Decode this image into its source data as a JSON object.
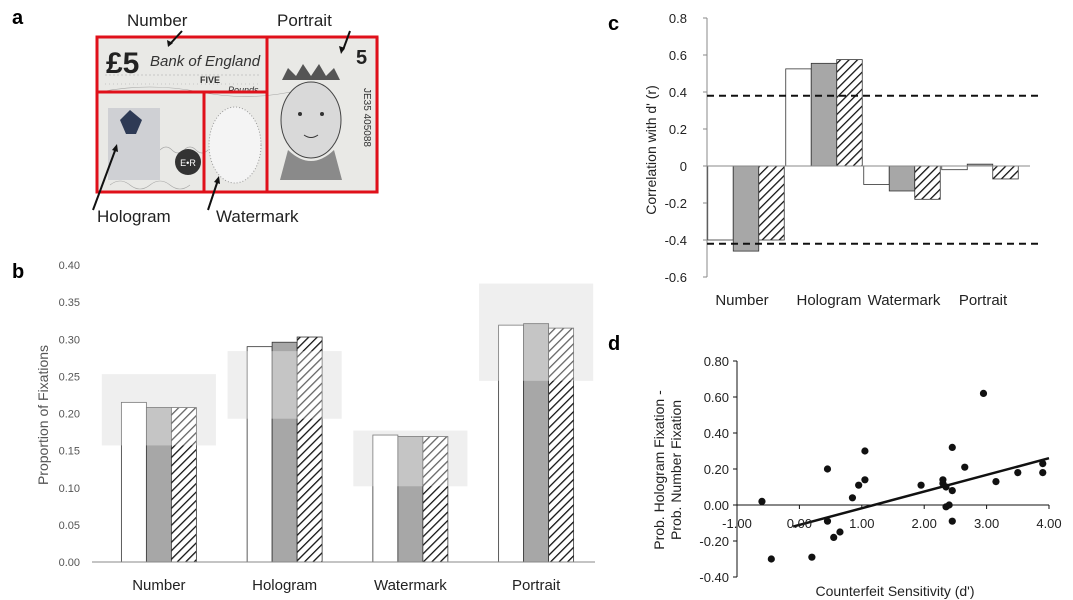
{
  "panel_letters": {
    "a": "a",
    "b": "b",
    "c": "c",
    "d": "d"
  },
  "banknote": {
    "labels": {
      "number": "Number",
      "portrait": "Portrait",
      "hologram": "Hologram",
      "watermark": "Watermark"
    },
    "note_text": {
      "denomination": "£5",
      "bank": "Bank of England",
      "five": "FIVE",
      "pounds": "Pounds",
      "serial": "JE35 405088",
      "corner_five": "5",
      "cipher": "E•R"
    },
    "colors": {
      "aoi_box": "#e0101a"
    }
  },
  "chart_data": [
    {
      "panel": "b",
      "type": "bar",
      "title": "",
      "xlabel": "",
      "ylabel": "Proportion of Fixations",
      "ylim": [
        0,
        0.4
      ],
      "yticks": [
        "0.00",
        "0.05",
        "0.10",
        "0.15",
        "0.20",
        "0.25",
        "0.30",
        "0.35",
        "0.40"
      ],
      "categories": [
        "Number",
        "Hologram",
        "Watermark",
        "Portrait"
      ],
      "series": [
        {
          "style": "white",
          "values": [
            0.215,
            0.29,
            0.171,
            0.319
          ]
        },
        {
          "style": "grey",
          "values": [
            0.208,
            0.296,
            0.169,
            0.321
          ]
        },
        {
          "style": "hatched",
          "values": [
            0.208,
            0.303,
            0.169,
            0.315
          ]
        }
      ],
      "chance_bands": [
        {
          "category": "Number",
          "low": 0.157,
          "high": 0.253
        },
        {
          "category": "Hologram",
          "low": 0.193,
          "high": 0.284
        },
        {
          "category": "Watermark",
          "low": 0.102,
          "high": 0.177
        },
        {
          "category": "Portrait",
          "low": 0.244,
          "high": 0.375
        }
      ],
      "grid": false
    },
    {
      "panel": "c",
      "type": "bar",
      "title": "",
      "xlabel": "",
      "ylabel": "Correlation  with d' (r)",
      "ylim": [
        -0.6,
        0.8
      ],
      "yticks": [
        "0.8",
        "0.6",
        "0.4",
        "0.2",
        "0",
        "-0.2",
        "-0.4",
        "-0.6"
      ],
      "categories": [
        "Number",
        "Hologram",
        "Watermark",
        "Portrait"
      ],
      "series": [
        {
          "style": "white",
          "values": [
            -0.4,
            0.525,
            -0.1,
            -0.02
          ]
        },
        {
          "style": "grey",
          "values": [
            -0.46,
            0.555,
            -0.135,
            0.01
          ]
        },
        {
          "style": "hatched",
          "values": [
            -0.4,
            0.575,
            -0.18,
            -0.07
          ]
        }
      ],
      "reference_lines": [
        0.38,
        -0.42
      ],
      "grid": false
    },
    {
      "panel": "d",
      "type": "scatter",
      "title": "",
      "xlabel": "Counterfeit Sensitivity (d')",
      "ylabel": "Prob. Hologram Fixation -\nProb. Number Fixation",
      "xlim": [
        -1.0,
        4.0
      ],
      "ylim": [
        -0.4,
        0.8
      ],
      "xticks": [
        "-1.00",
        "0.00",
        "1.00",
        "2.00",
        "3.00",
        "4.00"
      ],
      "yticks": [
        "-0.40",
        "-0.20",
        "0.00",
        "0.20",
        "0.40",
        "0.60",
        "0.80"
      ],
      "points": [
        {
          "x": -0.6,
          "y": 0.02
        },
        {
          "x": -0.45,
          "y": -0.3
        },
        {
          "x": 0.2,
          "y": -0.29
        },
        {
          "x": 0.45,
          "y": 0.2
        },
        {
          "x": 0.45,
          "y": -0.09
        },
        {
          "x": 0.55,
          "y": -0.18
        },
        {
          "x": 0.65,
          "y": -0.15
        },
        {
          "x": 0.85,
          "y": 0.04
        },
        {
          "x": 0.95,
          "y": 0.11
        },
        {
          "x": 1.05,
          "y": 0.3
        },
        {
          "x": 1.05,
          "y": 0.14
        },
        {
          "x": 1.95,
          "y": 0.11
        },
        {
          "x": 2.3,
          "y": 0.14
        },
        {
          "x": 2.3,
          "y": 0.12
        },
        {
          "x": 2.35,
          "y": 0.1
        },
        {
          "x": 2.35,
          "y": -0.01
        },
        {
          "x": 2.4,
          "y": 0.0
        },
        {
          "x": 2.45,
          "y": 0.08
        },
        {
          "x": 2.45,
          "y": 0.32
        },
        {
          "x": 2.45,
          "y": -0.09
        },
        {
          "x": 2.65,
          "y": 0.21
        },
        {
          "x": 2.95,
          "y": 0.62
        },
        {
          "x": 3.15,
          "y": 0.13
        },
        {
          "x": 3.5,
          "y": 0.18
        },
        {
          "x": 3.9,
          "y": 0.23
        },
        {
          "x": 3.9,
          "y": 0.18
        }
      ],
      "trendline": [
        {
          "x": -0.1,
          "y": -0.12
        },
        {
          "x": 4.0,
          "y": 0.26
        }
      ],
      "grid": false
    }
  ]
}
